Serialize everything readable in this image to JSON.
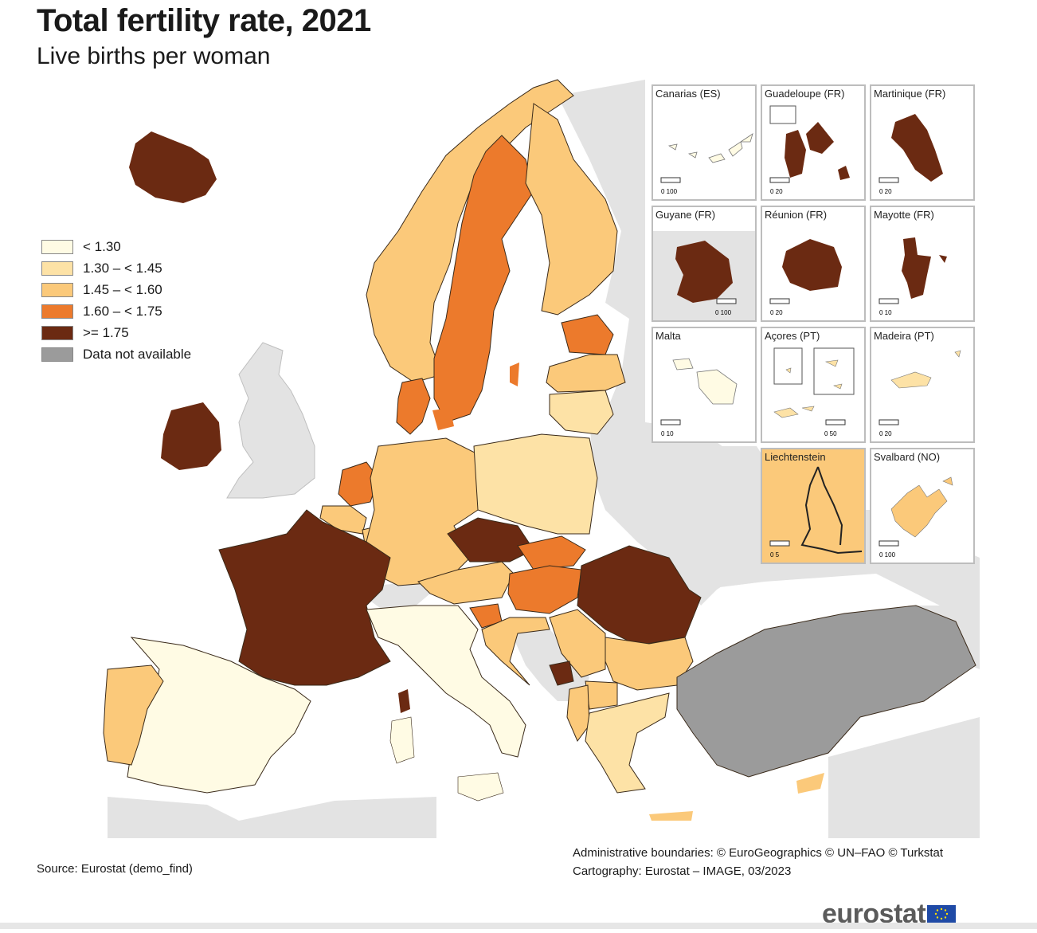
{
  "title": "Total fertility rate, 2021",
  "subtitle": "Live births per woman",
  "colors": {
    "lt130": "#fffbe4",
    "r130_145": "#fde2a6",
    "r145_160": "#fbc97a",
    "r160_175": "#ec7a2c",
    "ge175": "#6b2a12",
    "na": "#9b9b9b",
    "non_eu": "#e3e3e3",
    "sea": "#ffffff"
  },
  "legend": [
    {
      "label": "< 1.30",
      "color": "#fffbe4"
    },
    {
      "label": "1.30 – < 1.45",
      "color": "#fde2a6"
    },
    {
      "label": "1.45 – < 1.60",
      "color": "#fbc97a"
    },
    {
      "label": "1.60 – < 1.75",
      "color": "#ec7a2c"
    },
    {
      "label": ">= 1.75",
      "color": "#6b2a12"
    },
    {
      "label": "Data not available",
      "color": "#9b9b9b"
    }
  ],
  "insets": [
    {
      "label": "Canarias (ES)",
      "scale": "0 100"
    },
    {
      "label": "Guadeloupe (FR)",
      "scale": "0 20"
    },
    {
      "label": "Martinique (FR)",
      "scale": "0 20"
    },
    {
      "label": "Guyane (FR)",
      "scale": "0 100"
    },
    {
      "label": "Réunion (FR)",
      "scale": "0 20"
    },
    {
      "label": "Mayotte (FR)",
      "scale": "0 10"
    },
    {
      "label": "Malta",
      "scale": "0 10"
    },
    {
      "label": "Açores (PT)",
      "scale": "0 50"
    },
    {
      "label": "Madeira (PT)",
      "scale": "0 20"
    },
    {
      "label": "Liechtenstein",
      "scale": "0 5"
    },
    {
      "label": "Svalbard (NO)",
      "scale": "0 100"
    }
  ],
  "source": "Source: Eurostat (demo_find)",
  "admin_boundaries": "Administrative boundaries: © EuroGeographics © UN–FAO © Turkstat",
  "cartography": "Cartography: Eurostat – IMAGE, 03/2023",
  "logo_text": "eurostat"
}
